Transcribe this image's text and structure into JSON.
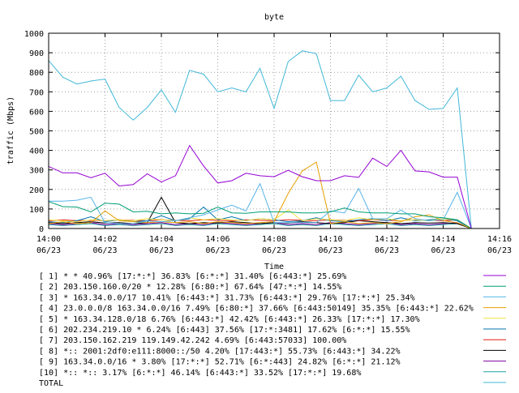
{
  "chart_data": {
    "type": "line",
    "title": "byte",
    "xlabel": "Time",
    "ylabel": "traffic (Mbps)",
    "ylim": [
      0,
      1000
    ],
    "y_ticks": [
      "0",
      "100",
      "200",
      "300",
      "400",
      "500",
      "600",
      "700",
      "800",
      "900",
      "1000"
    ],
    "x_range": [
      "14:00",
      "14:16"
    ],
    "x_ticks": [
      {
        "time": "14:00",
        "date": "06/23"
      },
      {
        "time": "14:02",
        "date": "06/23"
      },
      {
        "time": "14:04",
        "date": "06/23"
      },
      {
        "time": "14:06",
        "date": "06/23"
      },
      {
        "time": "14:08",
        "date": "06/23"
      },
      {
        "time": "14:10",
        "date": "06/23"
      },
      {
        "time": "14:12",
        "date": "06/23"
      },
      {
        "time": "14:14",
        "date": "06/23"
      },
      {
        "time": "14:16",
        "date": "06/23"
      }
    ],
    "grid": true,
    "legend_position": "bottom",
    "x": [
      "14:00",
      "14:00:30",
      "14:01",
      "14:01:30",
      "14:02",
      "14:02:30",
      "14:03",
      "14:03:30",
      "14:04",
      "14:04:30",
      "14:05",
      "14:05:30",
      "14:06",
      "14:06:30",
      "14:07",
      "14:07:30",
      "14:08",
      "14:08:30",
      "14:09",
      "14:09:30",
      "14:10",
      "14:10:30",
      "14:11",
      "14:11:30",
      "14:12",
      "14:12:30",
      "14:13",
      "14:13:30",
      "14:14",
      "14:14:30",
      "14:15"
    ],
    "series": [
      {
        "name": "[ 1] * * 40.96% [17:*:*] 36.83% [6:*:*] 31.40% [6:443:*] 25.69%",
        "color": "#9400d3",
        "values": [
          318,
          285,
          285,
          260,
          283,
          218,
          225,
          280,
          238,
          270,
          425,
          320,
          233,
          245,
          283,
          270,
          265,
          298,
          265,
          245,
          245,
          270,
          262,
          360,
          318,
          400,
          295,
          290,
          263,
          263,
          0
        ]
      },
      {
        "name": "[ 2] 203.150.160.0/20 * 12.28% [6:80:*] 67.64% [47:*:*] 14.55%",
        "color": "#009e73",
        "values": [
          138,
          112,
          110,
          85,
          130,
          125,
          85,
          88,
          75,
          80,
          75,
          78,
          110,
          80,
          78,
          85,
          85,
          85,
          80,
          80,
          85,
          105,
          85,
          80,
          80,
          75,
          75,
          60,
          55,
          45,
          0
        ]
      },
      {
        "name": "[ 3] * 163.34.0.0/17 10.41% [6:443:*] 31.73% [6:443:*] 29.76% [17:*:*] 25.34%",
        "color": "#56b4e9",
        "values": [
          140,
          140,
          145,
          160,
          30,
          25,
          25,
          38,
          35,
          40,
          55,
          70,
          95,
          120,
          90,
          230,
          30,
          30,
          30,
          30,
          90,
          80,
          205,
          50,
          50,
          95,
          50,
          40,
          45,
          185,
          0
        ]
      },
      {
        "name": "[ 4] 23.0.0.0/8 163.34.0.0/16 7.49% [6:80:*] 37.66% [6:443:50149] 35.35% [6:443:*] 22.62%",
        "color": "#e69f00",
        "values": [
          25,
          35,
          25,
          30,
          90,
          40,
          35,
          30,
          35,
          30,
          35,
          25,
          35,
          30,
          25,
          30,
          35,
          180,
          295,
          340,
          25,
          35,
          25,
          30,
          25,
          35,
          60,
          70,
          40,
          30,
          0
        ]
      },
      {
        "name": "[ 5] * 163.34.128.0/18 6.76% [6:443:*] 42.42% [6:443:*] 26.33% [17:*:*] 17.30%",
        "color": "#f0e442",
        "values": [
          45,
          40,
          35,
          45,
          40,
          45,
          40,
          50,
          45,
          40,
          55,
          45,
          50,
          45,
          40,
          50,
          45,
          95,
          40,
          50,
          45,
          40,
          55,
          45,
          50,
          40,
          45,
          40,
          50,
          45,
          0
        ]
      },
      {
        "name": "[ 6] 202.234.219.10 * 6.24% [6:443] 37.56% [17:*:3481] 17.62% [6:*:*] 15.55%",
        "color": "#0072b2",
        "values": [
          35,
          30,
          40,
          60,
          35,
          45,
          35,
          40,
          65,
          40,
          50,
          110,
          45,
          60,
          40,
          50,
          45,
          35,
          40,
          55,
          40,
          35,
          45,
          50,
          40,
          55,
          40,
          45,
          50,
          40,
          0
        ]
      },
      {
        "name": "[ 7] 203.150.162.219 119.149.42.242 4.69% [6:443:57033] 100.00%",
        "color": "#e51e10",
        "values": [
          40,
          45,
          40,
          42,
          40,
          45,
          42,
          40,
          45,
          42,
          40,
          45,
          42,
          40,
          45,
          42,
          40,
          45,
          42,
          40,
          45,
          42,
          40,
          45,
          42,
          40,
          45,
          42,
          40,
          45,
          0
        ]
      },
      {
        "name": "[ 8] *:: 2001:2df0:e111:8000::/50 4.20% [17:443:*] 55.73% [6:443:*] 34.22%",
        "color": "#000000",
        "values": [
          30,
          25,
          30,
          35,
          28,
          30,
          25,
          30,
          160,
          30,
          25,
          30,
          28,
          35,
          30,
          25,
          30,
          28,
          35,
          30,
          25,
          30,
          40,
          35,
          30,
          25,
          30,
          28,
          30,
          25,
          0
        ]
      },
      {
        "name": "[ 9] 163.34.0.0/16 * 3.80% [17:*:*] 52.71% [6:*:443] 24.82% [6:*:*] 21.12%",
        "color": "#8000a0",
        "values": [
          25,
          20,
          25,
          30,
          20,
          25,
          20,
          25,
          30,
          20,
          25,
          20,
          30,
          25,
          20,
          25,
          30,
          20,
          25,
          20,
          30,
          25,
          20,
          25,
          30,
          20,
          25,
          20,
          25,
          30,
          0
        ]
      },
      {
        "name": "[10] *:: *:: 3.17% [6:*:*] 46.14% [6:443:*] 33.52% [17:*:*] 19.68%",
        "color": "#20a0a0",
        "values": [
          20,
          15,
          20,
          25,
          15,
          20,
          15,
          20,
          25,
          15,
          20,
          15,
          25,
          20,
          15,
          20,
          25,
          15,
          20,
          15,
          25,
          20,
          15,
          20,
          25,
          15,
          20,
          15,
          20,
          25,
          0
        ]
      },
      {
        "name": "TOTAL",
        "color": "#40b8d8",
        "values": [
          860,
          775,
          740,
          755,
          765,
          620,
          555,
          620,
          710,
          595,
          810,
          790,
          700,
          720,
          700,
          820,
          615,
          855,
          910,
          895,
          655,
          655,
          785,
          700,
          720,
          780,
          655,
          610,
          615,
          720,
          0
        ]
      }
    ]
  }
}
